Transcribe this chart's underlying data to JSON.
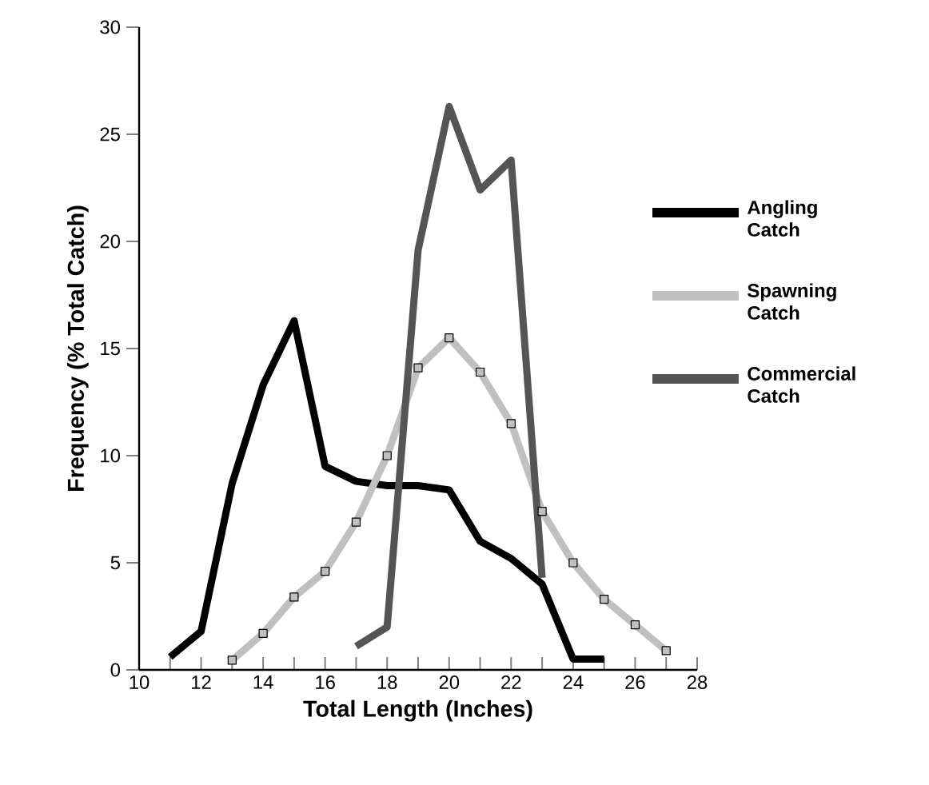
{
  "chart_data": {
    "type": "line",
    "xlabel": "Total Length (Inches)",
    "ylabel": "Frequency (% Total Catch)",
    "xlim": [
      10,
      28
    ],
    "ylim": [
      0,
      30
    ],
    "xticks": [
      10,
      {
        "value": 11,
        "label": null
      },
      12,
      {
        "value": 13,
        "label": null
      },
      14,
      {
        "value": 15,
        "label": null
      },
      16,
      {
        "value": 17,
        "label": null
      },
      18,
      {
        "value": 19,
        "label": null
      },
      20,
      {
        "value": 21,
        "label": null
      },
      22,
      {
        "value": 23,
        "label": null
      },
      24,
      {
        "value": 25,
        "label": null
      },
      26,
      {
        "value": 27,
        "label": null
      },
      28
    ],
    "yticks": [
      0,
      5,
      10,
      15,
      20,
      25,
      30
    ],
    "grid": false,
    "legend": "right",
    "series": [
      {
        "name": "Angling Catch",
        "color": "#000000",
        "marker": "none",
        "x": [
          11,
          12,
          13,
          14,
          15,
          16,
          17,
          18,
          19,
          20,
          21,
          22,
          23,
          24,
          25
        ],
        "values": [
          0.6,
          1.8,
          8.7,
          13.3,
          16.3,
          9.5,
          8.8,
          8.6,
          8.6,
          8.4,
          6.0,
          5.2,
          4.0,
          0.5,
          0.5
        ]
      },
      {
        "name": "Spawning Catch",
        "color": "#c0c0c0",
        "marker": "square",
        "x": [
          13,
          14,
          15,
          16,
          17,
          18,
          19,
          20,
          21,
          22,
          23,
          24,
          25,
          26,
          27
        ],
        "values": [
          0.45,
          1.7,
          3.4,
          4.6,
          6.9,
          10.0,
          14.1,
          15.5,
          13.9,
          11.5,
          7.4,
          5.0,
          3.3,
          2.1,
          0.9
        ]
      },
      {
        "name": "Commercial Catch",
        "color": "#555555",
        "marker": "none",
        "x": [
          17,
          18,
          19,
          20,
          21,
          22,
          23
        ],
        "values": [
          1.1,
          2.0,
          19.6,
          26.3,
          22.4,
          23.8,
          4.3
        ]
      }
    ]
  }
}
